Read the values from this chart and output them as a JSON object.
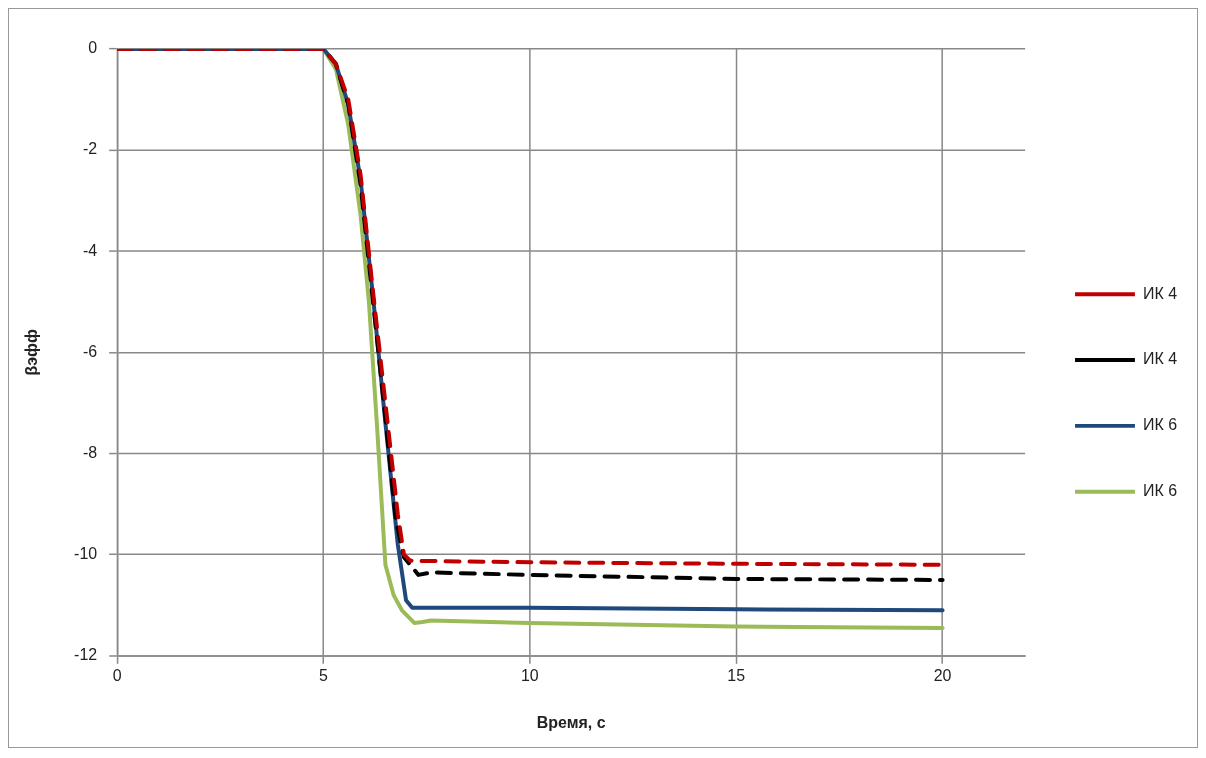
{
  "chart_data": {
    "type": "line",
    "xlabel": "Время, с",
    "ylabel": "βэфф",
    "xlim": [
      0,
      22
    ],
    "xticks": [
      0,
      5,
      10,
      15,
      20
    ],
    "ylim": [
      -12,
      0
    ],
    "yticks": [
      -12,
      -10,
      -8,
      -6,
      -4,
      -2,
      0
    ],
    "grid": true,
    "legend": "right",
    "marker": "none",
    "series": [
      {
        "name": "ИК 4",
        "color": "#c00000",
        "line_style": "dashed",
        "x": [
          0,
          5,
          5.3,
          5.6,
          5.9,
          6.2,
          6.5,
          6.8,
          6.95,
          7.1,
          10,
          15,
          20
        ],
        "values": [
          0,
          0,
          -0.3,
          -1,
          -2.5,
          -4.8,
          -7,
          -9.2,
          -10,
          -10.12,
          -10.15,
          -10.18,
          -10.2
        ]
      },
      {
        "name": "ИК 4",
        "color": "#000000",
        "line_style": "dashed",
        "x": [
          0,
          5,
          5.3,
          5.6,
          5.9,
          6.2,
          6.5,
          6.75,
          6.95,
          7.3,
          7.6,
          10,
          15,
          20
        ],
        "values": [
          0,
          0,
          -0.3,
          -1.1,
          -2.7,
          -5,
          -7.3,
          -9.3,
          -10.05,
          -10.4,
          -10.35,
          -10.4,
          -10.48,
          -10.5
        ]
      },
      {
        "name": "ИК 6",
        "color": "#1f497d",
        "line_style": "solid",
        "x": [
          0,
          5,
          5.3,
          5.6,
          5.9,
          6.2,
          6.5,
          6.8,
          7.0,
          7.15,
          10,
          15,
          20
        ],
        "values": [
          0,
          0,
          -0.3,
          -1.1,
          -2.6,
          -4.9,
          -7.4,
          -9.8,
          -10.9,
          -11.05,
          -11.05,
          -11.08,
          -11.1
        ]
      },
      {
        "name": "ИК 6",
        "color": "#9bbb59",
        "line_style": "solid",
        "x": [
          0,
          5,
          5.3,
          5.6,
          5.9,
          6.1,
          6.3,
          6.5,
          6.7,
          6.9,
          7.2,
          7.4,
          7.6,
          10,
          15,
          20
        ],
        "values": [
          0,
          0,
          -0.4,
          -1.5,
          -3.3,
          -5,
          -7.5,
          -10.2,
          -10.8,
          -11.1,
          -11.35,
          -11.33,
          -11.3,
          -11.35,
          -11.42,
          -11.45
        ]
      }
    ]
  }
}
